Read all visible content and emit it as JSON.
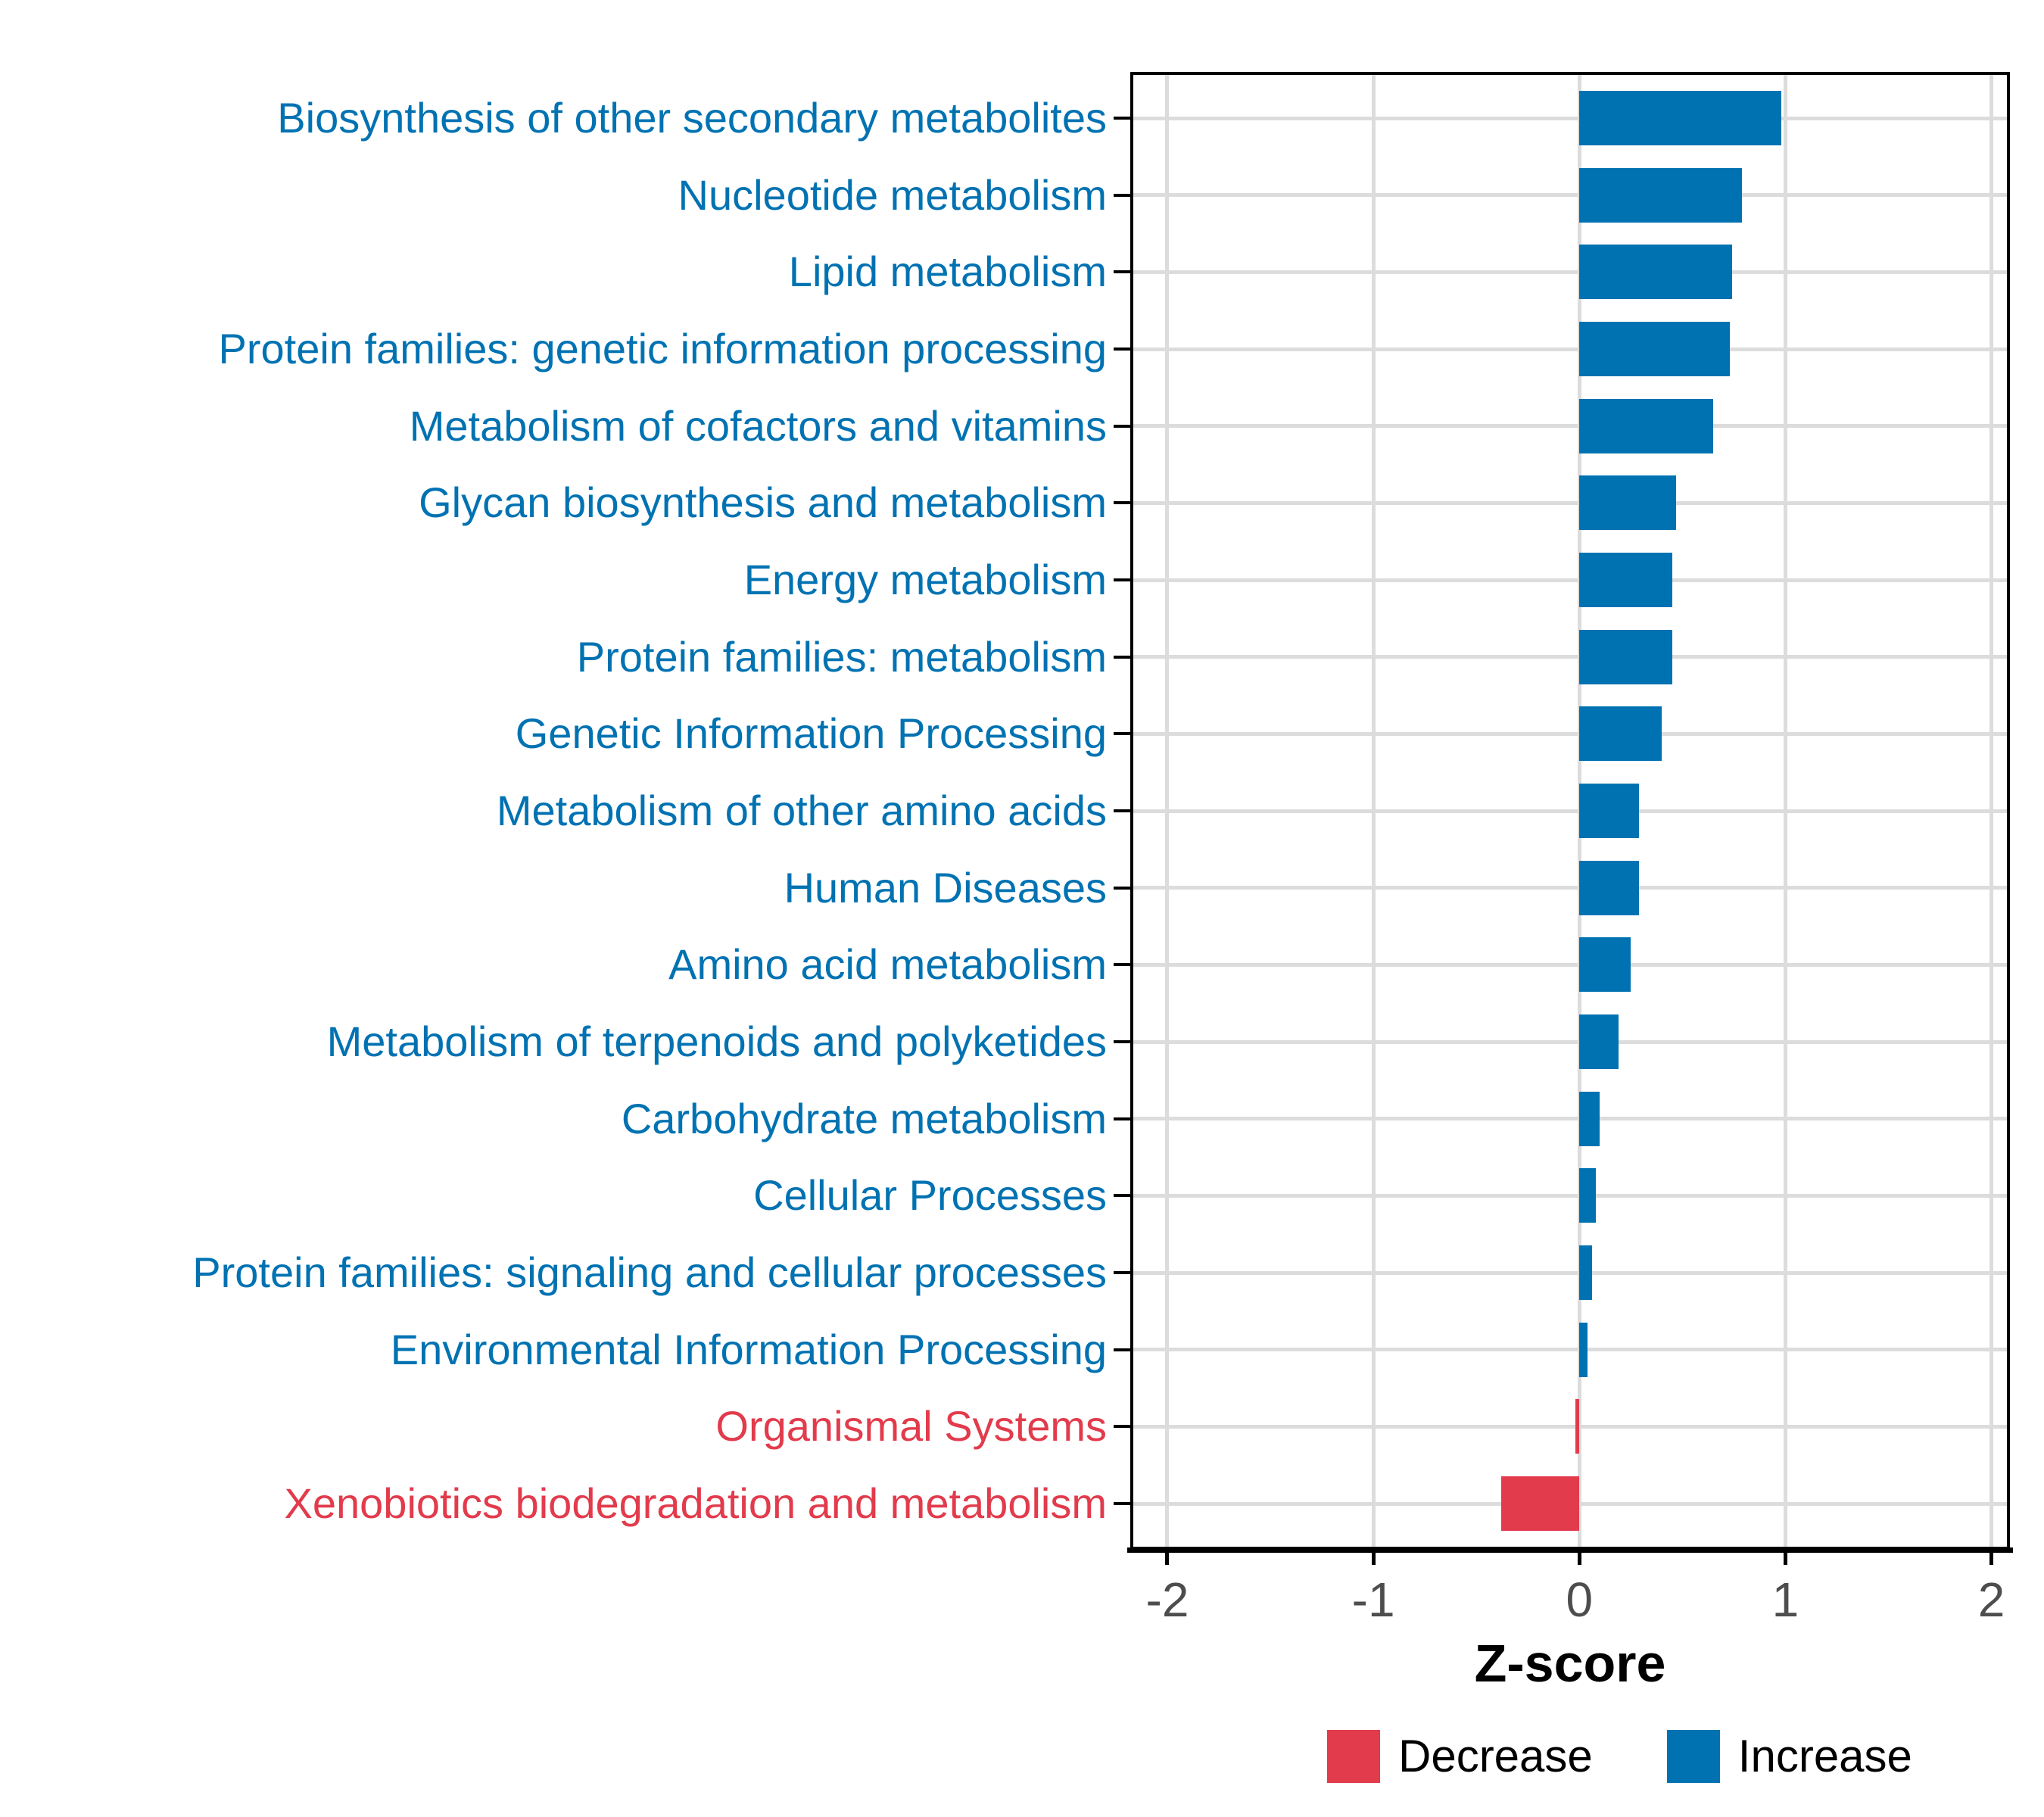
{
  "chart_data": {
    "type": "bar",
    "orientation": "horizontal",
    "title": "",
    "xlabel": "Z-score",
    "ylabel": "",
    "xlim": [
      -2.18,
      2.09
    ],
    "x_ticks": [
      -2,
      -1,
      0,
      1,
      2
    ],
    "grid": true,
    "legend_position": "bottom",
    "colors": {
      "increase": "#0072B2",
      "decrease": "#E23B4C"
    },
    "legend": [
      {
        "label": "Decrease",
        "key": "decrease"
      },
      {
        "label": "Increase",
        "key": "increase"
      }
    ],
    "rows": [
      {
        "category": "Biosynthesis of other secondary metabolites",
        "value": 0.98,
        "direction": "increase"
      },
      {
        "category": "Nucleotide metabolism",
        "value": 0.79,
        "direction": "increase"
      },
      {
        "category": "Lipid metabolism",
        "value": 0.74,
        "direction": "increase"
      },
      {
        "category": "Protein families: genetic information processing",
        "value": 0.73,
        "direction": "increase"
      },
      {
        "category": "Metabolism of cofactors and vitamins",
        "value": 0.65,
        "direction": "increase"
      },
      {
        "category": "Glycan biosynthesis and metabolism",
        "value": 0.47,
        "direction": "increase"
      },
      {
        "category": "Energy metabolism",
        "value": 0.45,
        "direction": "increase"
      },
      {
        "category": "Protein families: metabolism",
        "value": 0.45,
        "direction": "increase"
      },
      {
        "category": "Genetic Information Processing",
        "value": 0.4,
        "direction": "increase"
      },
      {
        "category": "Metabolism of other amino acids",
        "value": 0.29,
        "direction": "increase"
      },
      {
        "category": "Human Diseases",
        "value": 0.29,
        "direction": "increase"
      },
      {
        "category": "Amino acid metabolism",
        "value": 0.25,
        "direction": "increase"
      },
      {
        "category": "Metabolism of terpenoids and polyketides",
        "value": 0.19,
        "direction": "increase"
      },
      {
        "category": "Carbohydrate metabolism",
        "value": 0.1,
        "direction": "increase"
      },
      {
        "category": "Cellular Processes",
        "value": 0.08,
        "direction": "increase"
      },
      {
        "category": "Protein families: signaling and cellular processes",
        "value": 0.06,
        "direction": "increase"
      },
      {
        "category": "Environmental Information Processing",
        "value": 0.04,
        "direction": "increase"
      },
      {
        "category": "Organismal Systems",
        "value": -0.02,
        "direction": "decrease"
      },
      {
        "category": "Xenobiotics biodegradation and metabolism",
        "value": -0.38,
        "direction": "decrease"
      }
    ]
  }
}
